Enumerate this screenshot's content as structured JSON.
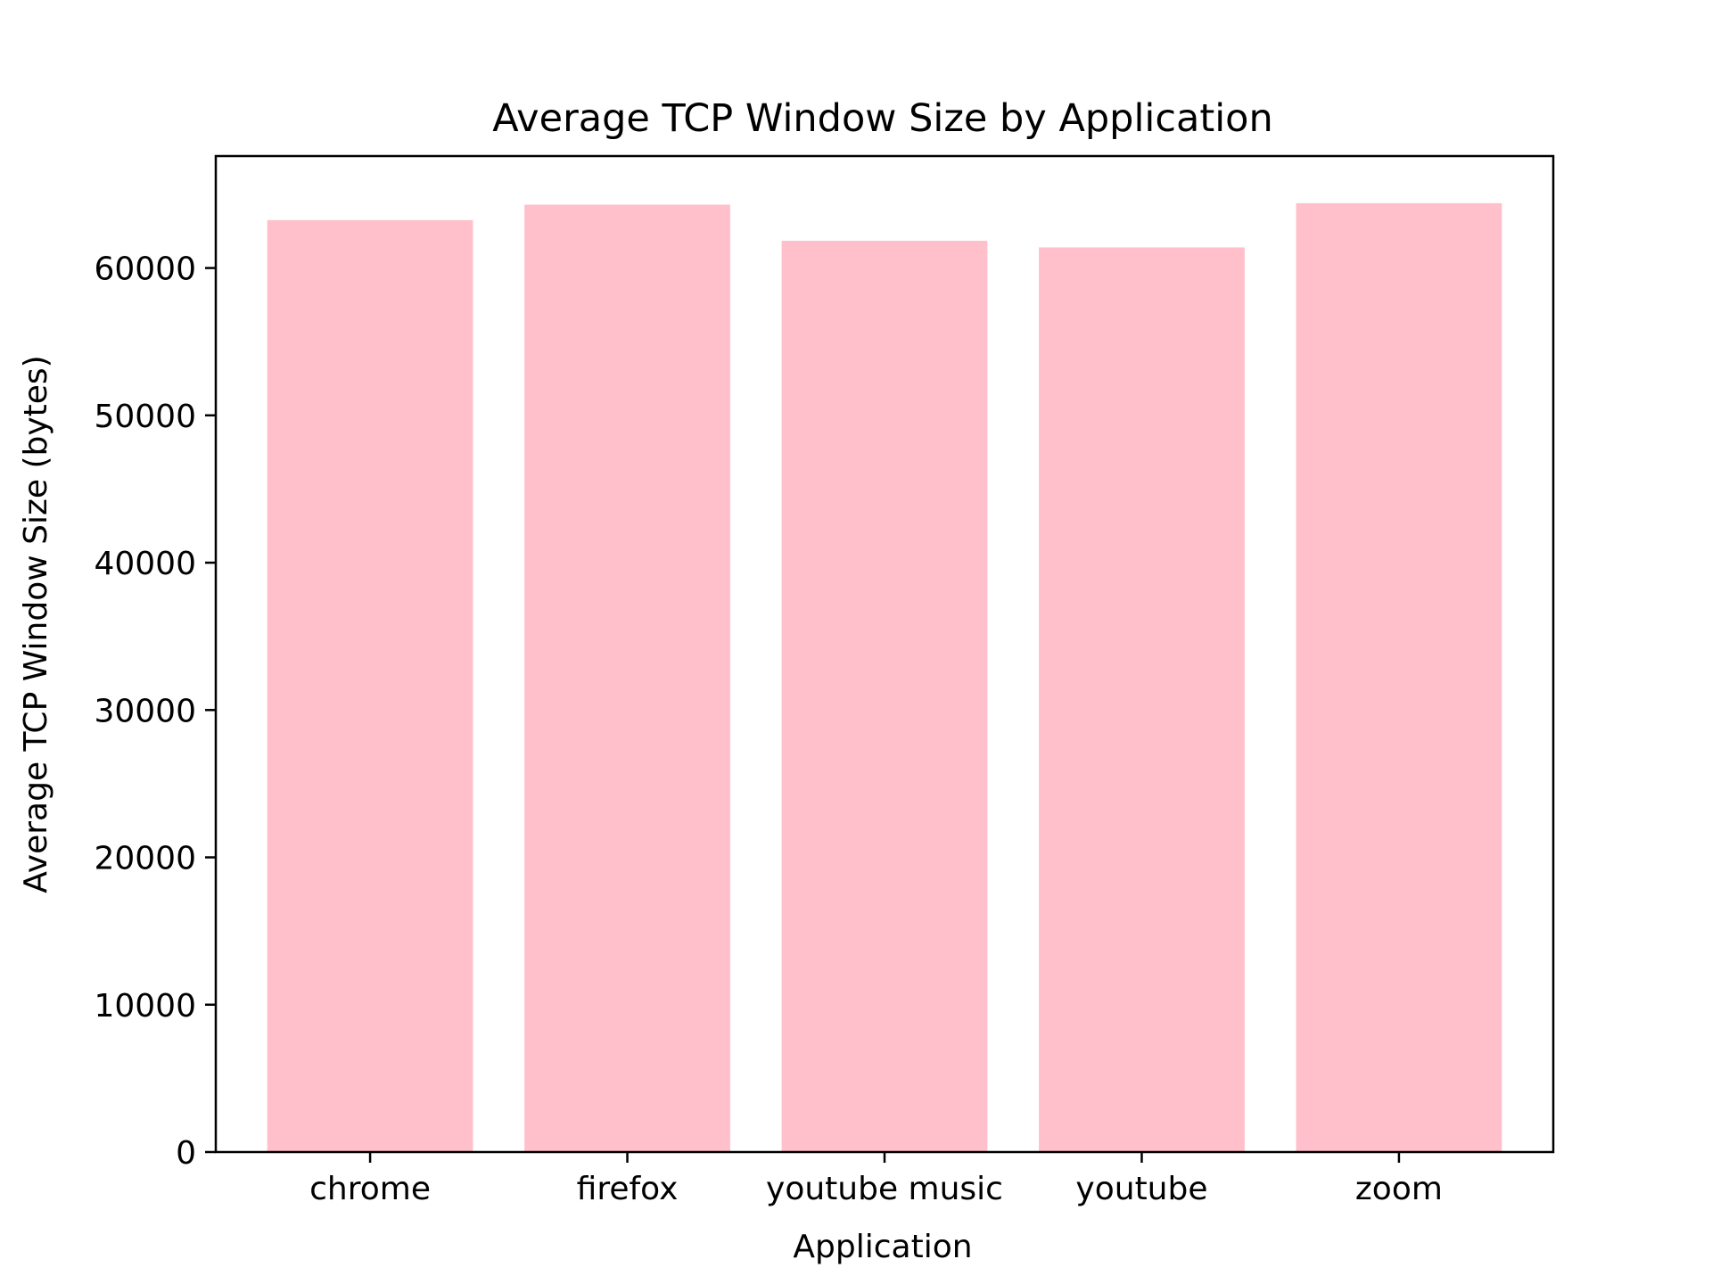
{
  "chart_data": {
    "type": "bar",
    "title": "Average TCP Window Size by Application",
    "xlabel": "Application",
    "ylabel": "Average TCP Window Size (bytes)",
    "categories": [
      "chrome",
      "firefox",
      "youtube music",
      "youtube",
      "zoom"
    ],
    "values": [
      63250,
      64300,
      61850,
      61400,
      64400
    ],
    "ylim": [
      0,
      67600
    ],
    "yticks": [
      0,
      10000,
      20000,
      30000,
      40000,
      50000,
      60000
    ],
    "ytick_labels": [
      "0",
      "10000",
      "20000",
      "30000",
      "40000",
      "50000",
      "60000"
    ],
    "grid": false,
    "legend": "none",
    "bar_color": "#ffc0cb",
    "axis_color": "#000000"
  }
}
